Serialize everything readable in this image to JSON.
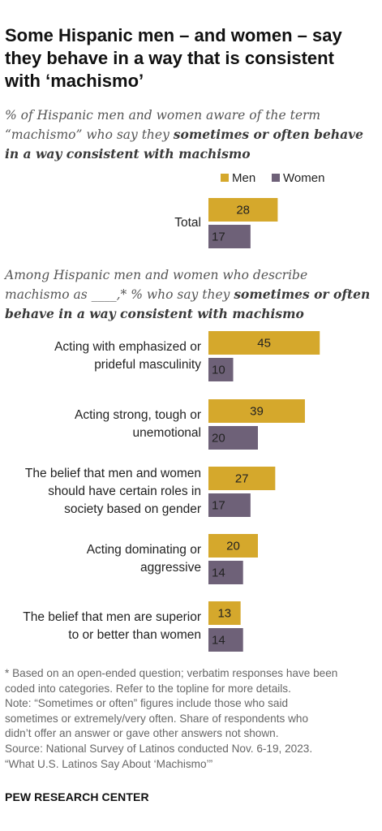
{
  "header": {
    "title": "Some Hispanic men – and women – say they behave in a way that is consistent with ‘machismo’",
    "subtitle1_plain": "% of Hispanic men and women aware of the term “machismo” who say they",
    "subtitle1_bold": "sometimes or often behave in a way consistent with machismo",
    "subtitle2_plain": "Among Hispanic men and women who describe machismo as ____,* % who say they",
    "subtitle2_bold": "sometimes or often behave in a way consistent with machismo"
  },
  "legend": {
    "men": "Men",
    "women": "Women"
  },
  "colors": {
    "men": "#d5a82c",
    "women": "#6e6178"
  },
  "chart_data": {
    "type": "bar",
    "orientation": "horizontal",
    "categories": [
      "Total",
      "Acting with emphasized or prideful masculinity",
      "Acting strong, tough or unemotional",
      "The belief that men and women should have certain roles in society based on gender",
      "Acting dominating or aggressive",
      "The belief that men are superior to or better than women"
    ],
    "category_lines": [
      [
        "Total"
      ],
      [
        "Acting with emphasized or",
        "prideful masculinity"
      ],
      [
        "Acting strong, tough or",
        "unemotional"
      ],
      [
        "The belief that men and women",
        "should have certain roles in",
        "society based on gender"
      ],
      [
        "Acting dominating or",
        "aggressive"
      ],
      [
        "The belief that men are superior",
        "to or better than women"
      ]
    ],
    "series": [
      {
        "name": "Men",
        "values": [
          28,
          45,
          39,
          27,
          20,
          13
        ]
      },
      {
        "name": "Women",
        "values": [
          17,
          10,
          20,
          17,
          14,
          14
        ]
      }
    ],
    "data_labels": true,
    "legend_position": "top-right"
  },
  "notes": {
    "lines": [
      "* Based on an open-ended question; verbatim responses have been",
      "coded into categories. Refer to the topline for more details.",
      "Note: “Sometimes or often” figures include those who said",
      "sometimes or extremely/very often. Share of respondents who",
      "didn’t offer an answer or gave other answers not shown.",
      "Source: National Survey of Latinos conducted Nov. 6-19, 2023.",
      "“What U.S. Latinos Say About ‘Machismo’”"
    ]
  },
  "footer": {
    "brand": "PEW RESEARCH CENTER"
  }
}
